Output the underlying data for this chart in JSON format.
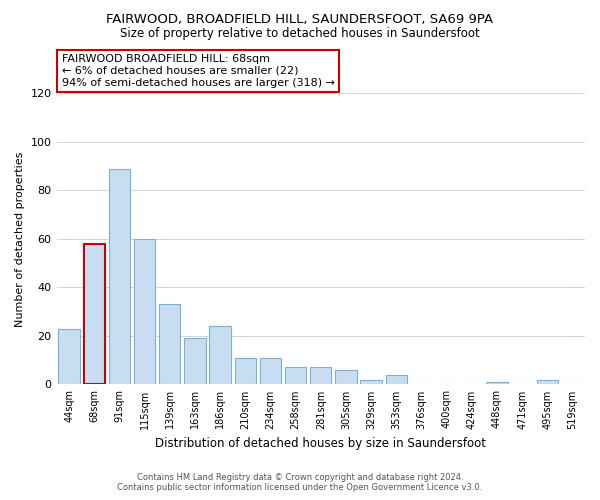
{
  "title": "FAIRWOOD, BROADFIELD HILL, SAUNDERSFOOT, SA69 9PA",
  "subtitle": "Size of property relative to detached houses in Saundersfoot",
  "xlabel": "Distribution of detached houses by size in Saundersfoot",
  "ylabel": "Number of detached properties",
  "bar_labels": [
    "44sqm",
    "68sqm",
    "91sqm",
    "115sqm",
    "139sqm",
    "163sqm",
    "186sqm",
    "210sqm",
    "234sqm",
    "258sqm",
    "281sqm",
    "305sqm",
    "329sqm",
    "353sqm",
    "376sqm",
    "400sqm",
    "424sqm",
    "448sqm",
    "471sqm",
    "495sqm",
    "519sqm"
  ],
  "bar_values": [
    23,
    58,
    89,
    60,
    33,
    19,
    24,
    11,
    11,
    7,
    7,
    6,
    2,
    4,
    0,
    0,
    0,
    1,
    0,
    2,
    0
  ],
  "bar_color": "#c9ddf2",
  "bar_edge_color": "#7bafd4",
  "highlight_bar_index": 1,
  "highlight_edge_color": "#cc0000",
  "ylim": [
    0,
    120
  ],
  "yticks": [
    0,
    20,
    40,
    60,
    80,
    100,
    120
  ],
  "annotation_title": "FAIRWOOD BROADFIELD HILL: 68sqm",
  "annotation_line1": "← 6% of detached houses are smaller (22)",
  "annotation_line2": "94% of semi-detached houses are larger (318) →",
  "annotation_box_color": "#ffffff",
  "annotation_box_edge": "#cc0000",
  "footer_line1": "Contains HM Land Registry data © Crown copyright and database right 2024.",
  "footer_line2": "Contains public sector information licensed under the Open Government Licence v3.0.",
  "background_color": "#ffffff",
  "grid_color": "#c8d8e8"
}
